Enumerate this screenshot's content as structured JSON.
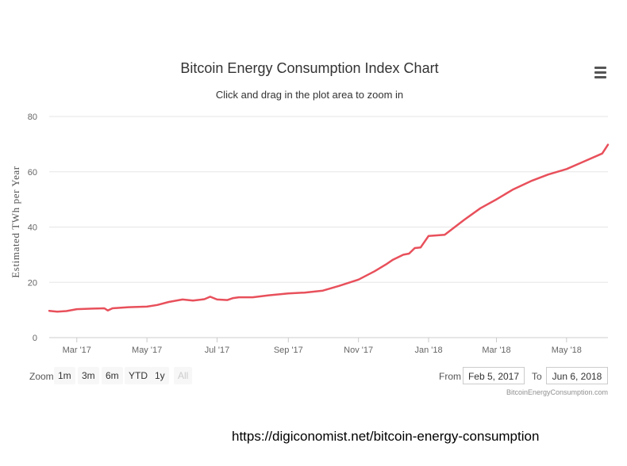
{
  "colors": {
    "series": "#e8505b",
    "grid": "#e6e6e6",
    "axis": "#cccccc",
    "text": "#666666"
  },
  "header": {
    "menu_icon": "hamburger-menu-icon"
  },
  "range_selector": {
    "zoom_label": "Zoom",
    "buttons": [
      {
        "label": "1m",
        "enabled": true
      },
      {
        "label": "3m",
        "enabled": true
      },
      {
        "label": "6m",
        "enabled": true
      },
      {
        "label": "YTD",
        "enabled": true
      },
      {
        "label": "1y",
        "enabled": true
      },
      {
        "label": "All",
        "enabled": false
      }
    ],
    "from_label": "From",
    "from_value": "Feb 5, 2017",
    "to_label": "To",
    "to_value": "Jun 6, 2018"
  },
  "credit": "BitcoinEnergyConsumption.com",
  "source_url": "https://digiconomist.net/bitcoin-energy-consumption",
  "chart_data": {
    "type": "line",
    "title": "Bitcoin Energy Consumption Index Chart",
    "subtitle": "Click and drag in the plot area to zoom in",
    "ylabel": "Estimated TWh per Year",
    "xlabel": "",
    "ylim": [
      0,
      80
    ],
    "yticks": [
      0,
      20,
      40,
      60,
      80
    ],
    "xlim": [
      "2017-02-05",
      "2018-06-06"
    ],
    "xticks": [
      {
        "date": "2017-03-01",
        "label": "Mar '17"
      },
      {
        "date": "2017-05-01",
        "label": "May '17"
      },
      {
        "date": "2017-07-01",
        "label": "Jul '17"
      },
      {
        "date": "2017-09-01",
        "label": "Sep '17"
      },
      {
        "date": "2017-11-01",
        "label": "Nov '17"
      },
      {
        "date": "2018-01-01",
        "label": "Jan '18"
      },
      {
        "date": "2018-03-01",
        "label": "Mar '18"
      },
      {
        "date": "2018-05-01",
        "label": "May '18"
      }
    ],
    "grid": true,
    "legend": "none",
    "series": [
      {
        "x": [
          "2017-02-05",
          "2017-02-12",
          "2017-02-20",
          "2017-03-01",
          "2017-03-15",
          "2017-03-25",
          "2017-03-28",
          "2017-04-01",
          "2017-04-15",
          "2017-05-01",
          "2017-05-10",
          "2017-05-20",
          "2017-06-01",
          "2017-06-10",
          "2017-06-20",
          "2017-06-25",
          "2017-07-01",
          "2017-07-10",
          "2017-07-15",
          "2017-07-20",
          "2017-08-01",
          "2017-08-15",
          "2017-09-01",
          "2017-09-15",
          "2017-10-01",
          "2017-10-15",
          "2017-11-01",
          "2017-11-15",
          "2017-11-25",
          "2017-12-01",
          "2017-12-10",
          "2017-12-15",
          "2017-12-20",
          "2017-12-25",
          "2018-01-01",
          "2018-01-15",
          "2018-02-01",
          "2018-02-15",
          "2018-03-01",
          "2018-03-15",
          "2018-04-01",
          "2018-04-15",
          "2018-05-01",
          "2018-05-15",
          "2018-06-01",
          "2018-06-06"
        ],
        "y": [
          9.7,
          9.4,
          9.6,
          10.3,
          10.5,
          10.6,
          9.8,
          10.6,
          11.0,
          11.2,
          11.8,
          12.9,
          13.8,
          13.4,
          13.9,
          14.8,
          13.8,
          13.6,
          14.3,
          14.6,
          14.6,
          15.3,
          16.0,
          16.3,
          17.0,
          18.7,
          21.0,
          24.0,
          26.5,
          28.2,
          30.0,
          30.4,
          32.4,
          32.6,
          36.8,
          37.2,
          42.6,
          46.8,
          50.0,
          53.5,
          56.8,
          59.0,
          61.0,
          63.5,
          66.6,
          69.8
        ]
      }
    ]
  }
}
